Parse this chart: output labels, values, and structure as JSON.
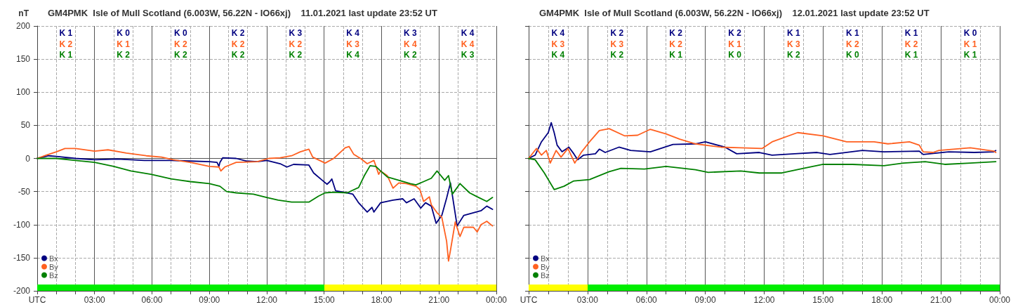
{
  "chart_data": [
    {
      "type": "line",
      "title": "GM4PMK  Isle of Mull Scotland (6.003W, 56.22N - IO66xj)    11.01.2021 last update 23:52 UT",
      "ylabel": "nT",
      "xlim": [
        0,
        24
      ],
      "xticks": [
        {
          "value": 0,
          "label": "UTC"
        },
        {
          "value": 1,
          "label": null
        },
        {
          "value": 2,
          "label": null
        },
        {
          "value": 3,
          "label": "03:00"
        },
        {
          "value": 4,
          "label": null
        },
        {
          "value": 5,
          "label": null
        },
        {
          "value": 6,
          "label": "06:00"
        },
        {
          "value": 7,
          "label": null
        },
        {
          "value": 8,
          "label": null
        },
        {
          "value": 9,
          "label": "09:00"
        },
        {
          "value": 10,
          "label": null
        },
        {
          "value": 11,
          "label": null
        },
        {
          "value": 12,
          "label": "12:00"
        },
        {
          "value": 13,
          "label": null
        },
        {
          "value": 14,
          "label": null
        },
        {
          "value": 15,
          "label": "15:00"
        },
        {
          "value": 16,
          "label": null
        },
        {
          "value": 17,
          "label": null
        },
        {
          "value": 18,
          "label": "18:00"
        },
        {
          "value": 19,
          "label": null
        },
        {
          "value": 20,
          "label": null
        },
        {
          "value": 21,
          "label": "21:00"
        },
        {
          "value": 22,
          "label": null
        },
        {
          "value": 23,
          "label": null
        },
        {
          "value": 24,
          "label": "00:00"
        }
      ],
      "ylim": [
        -200,
        200
      ],
      "yticks": [
        -200,
        -150,
        -100,
        -50,
        0,
        50,
        100,
        150,
        200
      ],
      "grid": true,
      "legend": "bottom left",
      "annotations": [
        "K 1",
        "K 2",
        "K 1",
        "K 0",
        "K 1",
        "K 2",
        "K 0",
        "K 2",
        "K 2",
        "K 2",
        "K 2",
        "K 2",
        "K 3",
        "K 2",
        "K 2",
        "K 4",
        "K 3",
        "K 4",
        "K 3",
        "K 4",
        "K 2",
        "K 4",
        "K 4",
        "K 3"
      ],
      "series": [
        {
          "name": "Bx",
          "color": "#000080",
          "x": [
            0,
            0.6,
            1,
            2,
            3,
            4.2,
            5.6,
            7,
            8,
            9,
            9.4,
            9.5,
            9.55,
            9.7,
            10.4,
            10.95,
            11.5,
            12,
            12.7,
            13.05,
            13.4,
            14.2,
            14.45,
            14.9,
            15.15,
            15.3,
            15.4,
            15.6,
            16.2,
            16.5,
            16.8,
            17.25,
            17.5,
            17.6,
            17.95,
            18.6,
            19.1,
            19.3,
            19.7,
            20.05,
            20.3,
            20.6,
            20.85,
            21.15,
            21.4,
            21.6,
            21.95,
            22.3,
            22.8,
            23.2,
            23.5,
            23.8
          ],
          "values": [
            0,
            4,
            3,
            0,
            -2,
            -1,
            -3,
            -3,
            -4,
            -5,
            -6,
            -12,
            -6,
            1,
            0,
            -4,
            -5,
            -3,
            -8,
            -13,
            -9,
            -10,
            -22,
            -33,
            -39,
            -35,
            -31,
            -49,
            -52,
            -54,
            -67,
            -81,
            -74,
            -81,
            -67,
            -63,
            -61,
            -67,
            -61,
            -75,
            -67,
            -72,
            -98,
            -86,
            -60,
            -37,
            -102,
            -86,
            -82,
            -79,
            -72,
            -77
          ]
        },
        {
          "name": "By",
          "color": "#ff6020",
          "x": [
            0,
            0.47,
            1,
            1.45,
            2,
            3,
            3.7,
            4.66,
            5.7,
            6.5,
            7.1,
            8,
            9,
            9.5,
            9.6,
            9.8,
            10.4,
            11.5,
            12.1,
            12.7,
            13.3,
            13.75,
            14.2,
            14.4,
            15.05,
            15.5,
            16.1,
            16.3,
            16.55,
            16.9,
            17.25,
            17.6,
            17.85,
            17.95,
            18.3,
            18.6,
            18.9,
            19.3,
            19.8,
            20,
            20.2,
            20.5,
            20.6,
            20.9,
            21.15,
            21.4,
            21.5,
            21.6,
            21.85,
            22.1,
            22.3,
            22.8,
            23,
            23.2,
            23.5,
            23.8
          ],
          "values": [
            0,
            5,
            10,
            15,
            15,
            11,
            13,
            8,
            4,
            2,
            -2,
            -6,
            -12,
            -13,
            -19,
            -13,
            -6,
            -5,
            0,
            1,
            4,
            10,
            14,
            2,
            -7,
            0,
            16,
            18,
            6,
            0,
            -8,
            -3,
            -24,
            -19,
            -26,
            -45,
            -37,
            -38,
            -42,
            -47,
            -65,
            -58,
            -70,
            -82,
            -89,
            -125,
            -155,
            -139,
            -96,
            -118,
            -104,
            -104,
            -111,
            -100,
            -95,
            -102
          ]
        },
        {
          "name": "Bz",
          "color": "#008000",
          "x": [
            0,
            1,
            2,
            3,
            4,
            4.9,
            5.95,
            7,
            8,
            9,
            9.55,
            9.9,
            10.4,
            11.3,
            12,
            12.6,
            13.3,
            14.2,
            14.7,
            15.05,
            15.5,
            16.2,
            16.8,
            17.1,
            17.4,
            17.7,
            17.95,
            18.3,
            18.9,
            19.5,
            19.8,
            20.2,
            20.6,
            20.9,
            21.3,
            21.5,
            21.7,
            22.1,
            22.6,
            23,
            23.5,
            23.8
          ],
          "values": [
            0,
            0,
            -3,
            -6,
            -12,
            -19,
            -24,
            -31,
            -35,
            -38,
            -42,
            -50,
            -52,
            -54,
            -59,
            -63,
            -66,
            -66,
            -57,
            -52,
            -51,
            -52,
            -44,
            -26,
            -11,
            -12,
            -19,
            -28,
            -33,
            -38,
            -40,
            -35,
            -30,
            -19,
            -33,
            -26,
            -54,
            -38,
            -52,
            -58,
            -65,
            -59
          ]
        }
      ]
    },
    {
      "type": "line",
      "title": "GM4PMK  Isle of Mull Scotland (6.003W, 56.22N - IO66xj)    12.01.2021 last update 23:52 UT",
      "xlim": [
        0,
        24
      ],
      "xticks": [
        {
          "value": 0,
          "label": "UTC"
        },
        {
          "value": 1,
          "label": null
        },
        {
          "value": 2,
          "label": null
        },
        {
          "value": 3,
          "label": "03:00"
        },
        {
          "value": 4,
          "label": null
        },
        {
          "value": 5,
          "label": null
        },
        {
          "value": 6,
          "label": "06:00"
        },
        {
          "value": 7,
          "label": null
        },
        {
          "value": 8,
          "label": null
        },
        {
          "value": 9,
          "label": "09:00"
        },
        {
          "value": 10,
          "label": null
        },
        {
          "value": 11,
          "label": null
        },
        {
          "value": 12,
          "label": "12:00"
        },
        {
          "value": 13,
          "label": null
        },
        {
          "value": 14,
          "label": null
        },
        {
          "value": 15,
          "label": "15:00"
        },
        {
          "value": 16,
          "label": null
        },
        {
          "value": 17,
          "label": null
        },
        {
          "value": 18,
          "label": "18:00"
        },
        {
          "value": 19,
          "label": null
        },
        {
          "value": 20,
          "label": null
        },
        {
          "value": 21,
          "label": "21:00"
        },
        {
          "value": 22,
          "label": null
        },
        {
          "value": 23,
          "label": null
        },
        {
          "value": 24,
          "label": "00:00"
        }
      ],
      "ylim": [
        -200,
        200
      ],
      "yticks": [
        -200,
        -150,
        -100,
        -50,
        0,
        50,
        100,
        150,
        200
      ],
      "tick_labels": "x",
      "grid": true,
      "legend": "bottom left",
      "annotations": [
        "K 4",
        "K 3",
        "K 4",
        "K 2",
        "K 3",
        "K 2",
        "K 2",
        "K 2",
        "K 1",
        "K 2",
        "K 1",
        "K 0",
        "K 1",
        "K 3",
        "K 2",
        "K 1",
        "K 2",
        "K 0",
        "K 1",
        "K 2",
        "K 1",
        "K 0",
        "K 1",
        "K 1"
      ],
      "series": [
        {
          "name": "Bx",
          "color": "#000080",
          "x": [
            0,
            0.33,
            0.65,
            1,
            1.15,
            1.3,
            1.45,
            1.7,
            2.05,
            2.3,
            2.5,
            2.8,
            3.4,
            3.6,
            3.9,
            4.6,
            5.2,
            6.2,
            7.35,
            8.5,
            9,
            10,
            10.6,
            11.75,
            12.4,
            13.55,
            14.7,
            15.35,
            17,
            18.1,
            19.9,
            20.1,
            21.4,
            22.7,
            23.7,
            23.8
          ],
          "values": [
            0,
            5,
            25,
            39,
            54,
            39,
            20,
            10,
            17,
            7,
            -2,
            5,
            7,
            14,
            9,
            17,
            12,
            10,
            21,
            22,
            25,
            17,
            7,
            9,
            5,
            7,
            9,
            6,
            12,
            10,
            11,
            6,
            10,
            9,
            10,
            12
          ]
        },
        {
          "name": "By",
          "color": "#ff6020",
          "x": [
            0,
            0.4,
            0.65,
            0.9,
            1.1,
            1.4,
            1.65,
            2,
            2.35,
            2.7,
            3.1,
            3.6,
            4.1,
            4.9,
            5.55,
            6.2,
            7,
            7.7,
            8.5,
            9.8,
            10.8,
            11.9,
            12.4,
            13.7,
            15,
            16.2,
            17.6,
            18.3,
            19.4,
            19.9,
            20.1,
            20.6,
            20.9,
            22.5,
            23.7,
            23.8
          ],
          "values": [
            0,
            15,
            5,
            12,
            -7,
            12,
            2,
            15,
            -7,
            10,
            25,
            42,
            45,
            34,
            35,
            44,
            37,
            29,
            22,
            17,
            16,
            15,
            25,
            39,
            34,
            25,
            25,
            22,
            25,
            20,
            10,
            9,
            12,
            16,
            11,
            9
          ]
        },
        {
          "name": "Bz",
          "color": "#008000",
          "x": [
            0,
            0.33,
            0.8,
            1.3,
            1.8,
            2.3,
            3.1,
            4.1,
            4.7,
            5.9,
            7,
            8.5,
            9.15,
            10.8,
            11.75,
            12.9,
            14,
            15,
            16.5,
            18.1,
            19.1,
            20.2,
            21.2,
            22.5,
            23.8
          ],
          "values": [
            0,
            -2,
            -22,
            -47,
            -42,
            -34,
            -32,
            -20,
            -15,
            -16,
            -12,
            -17,
            -21,
            -19,
            -22,
            -22,
            -15,
            -9,
            -9,
            -11,
            -7,
            -5,
            -9,
            -7,
            -5
          ]
        }
      ]
    }
  ]
}
